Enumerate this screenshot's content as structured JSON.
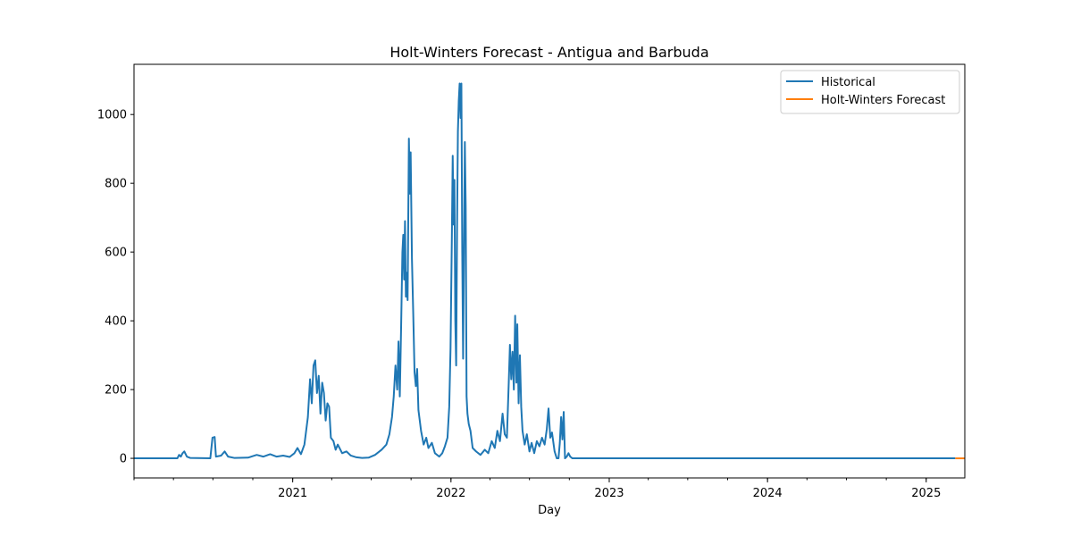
{
  "chart_data": {
    "type": "line",
    "title": "Holt-Winters Forecast - Antigua and Barbuda",
    "xlabel": "Day",
    "ylabel": "",
    "xlim": [
      "2020-01-01",
      "2025-03-31"
    ],
    "ylim": [
      -57,
      1146
    ],
    "yticks": [
      0,
      200,
      400,
      600,
      800,
      1000
    ],
    "xticks": [
      {
        "label": "2021",
        "date": "2021-01-01"
      },
      {
        "label": "2022",
        "date": "2022-01-01"
      },
      {
        "label": "2023",
        "date": "2023-01-01"
      },
      {
        "label": "2024",
        "date": "2024-01-01"
      },
      {
        "label": "2025",
        "date": "2025-01-01"
      }
    ],
    "grid": false,
    "legend_position": "top-right",
    "series": [
      {
        "name": "Historical",
        "color": "#1f77b4",
        "points": [
          [
            "2020-01-01",
            0
          ],
          [
            "2020-04-10",
            0
          ],
          [
            "2020-04-14",
            10
          ],
          [
            "2020-04-18",
            5
          ],
          [
            "2020-04-22",
            15
          ],
          [
            "2020-04-26",
            20
          ],
          [
            "2020-05-02",
            5
          ],
          [
            "2020-05-10",
            1
          ],
          [
            "2020-06-25",
            0
          ],
          [
            "2020-06-30",
            60
          ],
          [
            "2020-07-05",
            62
          ],
          [
            "2020-07-08",
            5
          ],
          [
            "2020-07-20",
            8
          ],
          [
            "2020-07-28",
            20
          ],
          [
            "2020-08-05",
            5
          ],
          [
            "2020-08-20",
            1
          ],
          [
            "2020-09-20",
            2
          ],
          [
            "2020-10-10",
            10
          ],
          [
            "2020-10-25",
            5
          ],
          [
            "2020-11-10",
            12
          ],
          [
            "2020-11-25",
            5
          ],
          [
            "2020-12-10",
            8
          ],
          [
            "2020-12-25",
            4
          ],
          [
            "2021-01-05",
            15
          ],
          [
            "2021-01-12",
            30
          ],
          [
            "2021-01-20",
            12
          ],
          [
            "2021-01-28",
            40
          ],
          [
            "2021-02-05",
            120
          ],
          [
            "2021-02-10",
            230
          ],
          [
            "2021-02-14",
            160
          ],
          [
            "2021-02-18",
            270
          ],
          [
            "2021-02-22",
            285
          ],
          [
            "2021-02-26",
            190
          ],
          [
            "2021-03-02",
            240
          ],
          [
            "2021-03-06",
            130
          ],
          [
            "2021-03-10",
            220
          ],
          [
            "2021-03-14",
            190
          ],
          [
            "2021-03-18",
            110
          ],
          [
            "2021-03-22",
            160
          ],
          [
            "2021-03-26",
            150
          ],
          [
            "2021-03-30",
            60
          ],
          [
            "2021-04-05",
            50
          ],
          [
            "2021-04-10",
            25
          ],
          [
            "2021-04-15",
            40
          ],
          [
            "2021-04-25",
            15
          ],
          [
            "2021-05-05",
            20
          ],
          [
            "2021-05-15",
            8
          ],
          [
            "2021-05-28",
            3
          ],
          [
            "2021-06-10",
            1
          ],
          [
            "2021-06-25",
            2
          ],
          [
            "2021-07-10",
            10
          ],
          [
            "2021-07-25",
            25
          ],
          [
            "2021-08-05",
            40
          ],
          [
            "2021-08-12",
            70
          ],
          [
            "2021-08-18",
            120
          ],
          [
            "2021-08-22",
            180
          ],
          [
            "2021-08-26",
            270
          ],
          [
            "2021-08-30",
            200
          ],
          [
            "2021-09-02",
            340
          ],
          [
            "2021-09-05",
            180
          ],
          [
            "2021-09-08",
            380
          ],
          [
            "2021-09-11",
            600
          ],
          [
            "2021-09-13",
            650
          ],
          [
            "2021-09-15",
            520
          ],
          [
            "2021-09-17",
            690
          ],
          [
            "2021-09-19",
            470
          ],
          [
            "2021-09-21",
            540
          ],
          [
            "2021-09-23",
            460
          ],
          [
            "2021-09-26",
            930
          ],
          [
            "2021-09-28",
            770
          ],
          [
            "2021-09-30",
            890
          ],
          [
            "2021-10-03",
            580
          ],
          [
            "2021-10-06",
            420
          ],
          [
            "2021-10-09",
            250
          ],
          [
            "2021-10-12",
            210
          ],
          [
            "2021-10-15",
            260
          ],
          [
            "2021-10-18",
            140
          ],
          [
            "2021-10-24",
            80
          ],
          [
            "2021-10-30",
            40
          ],
          [
            "2021-11-05",
            60
          ],
          [
            "2021-11-10",
            30
          ],
          [
            "2021-11-18",
            45
          ],
          [
            "2021-11-25",
            15
          ],
          [
            "2021-12-05",
            5
          ],
          [
            "2021-12-12",
            15
          ],
          [
            "2021-12-18",
            35
          ],
          [
            "2021-12-24",
            60
          ],
          [
            "2021-12-28",
            150
          ],
          [
            "2021-12-31",
            320
          ],
          [
            "2022-01-03",
            640
          ],
          [
            "2022-01-05",
            880
          ],
          [
            "2022-01-07",
            680
          ],
          [
            "2022-01-09",
            810
          ],
          [
            "2022-01-11",
            400
          ],
          [
            "2022-01-13",
            270
          ],
          [
            "2022-01-15",
            660
          ],
          [
            "2022-01-17",
            950
          ],
          [
            "2022-01-19",
            1040
          ],
          [
            "2022-01-21",
            1090
          ],
          [
            "2022-01-23",
            990
          ],
          [
            "2022-01-25",
            1090
          ],
          [
            "2022-01-27",
            600
          ],
          [
            "2022-01-29",
            290
          ],
          [
            "2022-01-31",
            600
          ],
          [
            "2022-02-02",
            920
          ],
          [
            "2022-02-04",
            730
          ],
          [
            "2022-02-06",
            180
          ],
          [
            "2022-02-08",
            130
          ],
          [
            "2022-02-11",
            100
          ],
          [
            "2022-02-15",
            80
          ],
          [
            "2022-02-20",
            30
          ],
          [
            "2022-02-28",
            20
          ],
          [
            "2022-03-10",
            10
          ],
          [
            "2022-03-20",
            25
          ],
          [
            "2022-03-28",
            15
          ],
          [
            "2022-04-05",
            50
          ],
          [
            "2022-04-12",
            30
          ],
          [
            "2022-04-18",
            80
          ],
          [
            "2022-04-24",
            50
          ],
          [
            "2022-04-30",
            130
          ],
          [
            "2022-05-05",
            70
          ],
          [
            "2022-05-10",
            60
          ],
          [
            "2022-05-14",
            210
          ],
          [
            "2022-05-17",
            330
          ],
          [
            "2022-05-20",
            230
          ],
          [
            "2022-05-23",
            310
          ],
          [
            "2022-05-26",
            200
          ],
          [
            "2022-05-29",
            415
          ],
          [
            "2022-06-01",
            220
          ],
          [
            "2022-06-03",
            390
          ],
          [
            "2022-06-06",
            160
          ],
          [
            "2022-06-09",
            300
          ],
          [
            "2022-06-12",
            150
          ],
          [
            "2022-06-15",
            80
          ],
          [
            "2022-06-20",
            40
          ],
          [
            "2022-06-25",
            70
          ],
          [
            "2022-07-01",
            20
          ],
          [
            "2022-07-06",
            45
          ],
          [
            "2022-07-12",
            15
          ],
          [
            "2022-07-18",
            50
          ],
          [
            "2022-07-24",
            35
          ],
          [
            "2022-07-30",
            60
          ],
          [
            "2022-08-05",
            40
          ],
          [
            "2022-08-10",
            85
          ],
          [
            "2022-08-14",
            145
          ],
          [
            "2022-08-18",
            60
          ],
          [
            "2022-08-22",
            75
          ],
          [
            "2022-08-28",
            20
          ],
          [
            "2022-09-02",
            0
          ],
          [
            "2022-09-06",
            0
          ],
          [
            "2022-09-09",
            45
          ],
          [
            "2022-09-12",
            120
          ],
          [
            "2022-09-15",
            55
          ],
          [
            "2022-09-18",
            135
          ],
          [
            "2022-09-21",
            0
          ],
          [
            "2022-09-25",
            5
          ],
          [
            "2022-09-29",
            15
          ],
          [
            "2022-10-03",
            5
          ],
          [
            "2022-10-08",
            0
          ],
          [
            "2025-03-09",
            0
          ]
        ]
      },
      {
        "name": "Holt-Winters Forecast",
        "color": "#ff7f0e",
        "points": [
          [
            "2025-03-09",
            0
          ],
          [
            "2025-03-31",
            0
          ]
        ]
      }
    ]
  }
}
